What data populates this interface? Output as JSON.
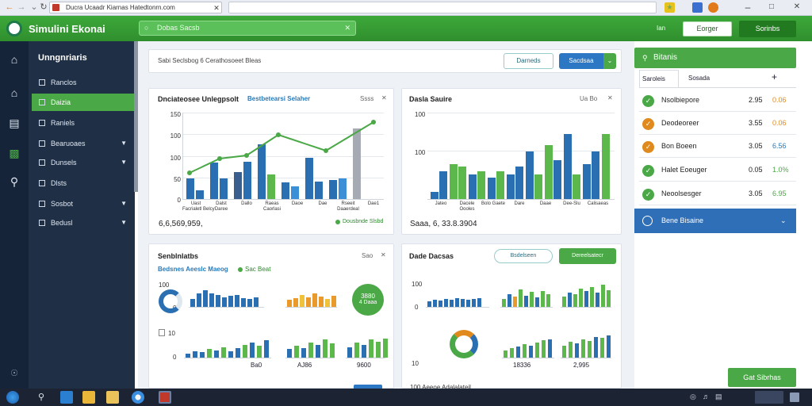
{
  "browser": {
    "url": "Ducra Ucaadr Kiarnas Hatedtonrn.com",
    "back_icon": "back-arrow-icon",
    "forward_icon": "forward-arrow-icon",
    "reload_icon": "reload-icon"
  },
  "header": {
    "title": "Simulini Ekonai",
    "search_placeholder": "Dobas Sacsb",
    "small_text": "Ian",
    "button1": "Eorger",
    "button2": "Sorinbs",
    "brand_color": "#3da83a"
  },
  "sidebar": {
    "title": "Unngnriaris",
    "items": [
      {
        "label": "Ranclos",
        "active": false,
        "caret": false
      },
      {
        "label": "Daizia",
        "active": true,
        "caret": false
      },
      {
        "label": "Raniels",
        "active": false,
        "caret": false
      },
      {
        "label": "Bearuoaes",
        "active": false,
        "caret": true
      },
      {
        "label": "Dunsels",
        "active": false,
        "caret": true
      },
      {
        "label": "Dlsts",
        "active": false,
        "caret": false
      },
      {
        "label": "Sosbot",
        "active": false,
        "caret": true
      },
      {
        "label": "Bedusl",
        "active": false,
        "caret": true
      }
    ]
  },
  "toolbar": {
    "breadcrumb": "Sabi Seclsbog 6 Cerathosoeet Bleas",
    "button_outline": "Darneds",
    "button_primary": "Sacdsaa"
  },
  "card1": {
    "title": "Dnciateosee Unlegpsolt",
    "subtitle": "Bestbetearsi Selaher",
    "ctrl": "Ssss",
    "y_ticks": [
      "150",
      "100",
      "100",
      "50",
      "0"
    ],
    "x_labels": [
      "Uast\nFacrialetl Belcy",
      "Dalst\nDaree",
      "Dallo",
      "Raeas\nCaorlasi",
      "Daoe",
      "Dae",
      "Rseeit\nDaaerdeal",
      "Dae1"
    ],
    "total": "6,6,569,959,",
    "legend": "Dousbnde Slsbd"
  },
  "card2": {
    "title": "Dasla Sauire",
    "ctrl": "Ua Bo",
    "y_ticks": [
      "100",
      "100"
    ],
    "x_labels": [
      "Jateo",
      "Dacele Oooles",
      "Bolo Gaete",
      "Dare",
      "Daae",
      "Dee-Slu",
      "Calisaeas"
    ],
    "total": "Saaa, 6, 33.8.3904"
  },
  "card3": {
    "title": "Senblnlatbs",
    "subtitle": "Bedsnes Aeeslc Maeog",
    "legend": "Sac Beat",
    "ctrl": "Sao",
    "y_ticks_top": [
      "100",
      "0"
    ],
    "y_ticks_bottom": [
      "10",
      "0"
    ],
    "gauge_value": "3880",
    "gauge_label": "4 Daaa",
    "x_labels": [
      "Ba0",
      "AJ86",
      "9600"
    ]
  },
  "card4": {
    "title": "Dade Dacsas",
    "button_outline": "Bsdelseen",
    "button_green": "Dereelsatecr",
    "y_ticks_top": [
      "100",
      "0"
    ],
    "y_ticks_bottom": [
      "10"
    ],
    "x_labels": [
      "18336",
      "2,995"
    ],
    "footer": "100 Aeeoe Adalalateil"
  },
  "right_panel": {
    "title": "Bitanis",
    "tabs": [
      "Saroleis",
      "Sosada"
    ],
    "add_icon": "plus-icon",
    "rows": [
      {
        "name": "Nsolbiepore",
        "v1": "2.95",
        "v2": "0.06",
        "color": "#4aa846",
        "v2_color": "#e08a1e"
      },
      {
        "name": "Deodeoreer",
        "v1": "3.55",
        "v2": "0.06",
        "color": "#e08a1e",
        "v2_color": "#e08a1e"
      },
      {
        "name": "Bon Boeen",
        "v1": "3.05",
        "v2": "6.56",
        "color": "#e08a1e",
        "v2_color": "#2a7ab8"
      },
      {
        "name": "Halet Eoeuger",
        "v1": "0.05",
        "v2": "1.0%",
        "color": "#4aa846",
        "v2_color": "#4aa846"
      },
      {
        "name": "Neoolsesger",
        "v1": "3.05",
        "v2": "6.95",
        "color": "#4aa846",
        "v2_color": "#4aa846"
      }
    ],
    "expander": "Bene Bisaine",
    "footer_button": "Gat Sibrhas"
  }
}
